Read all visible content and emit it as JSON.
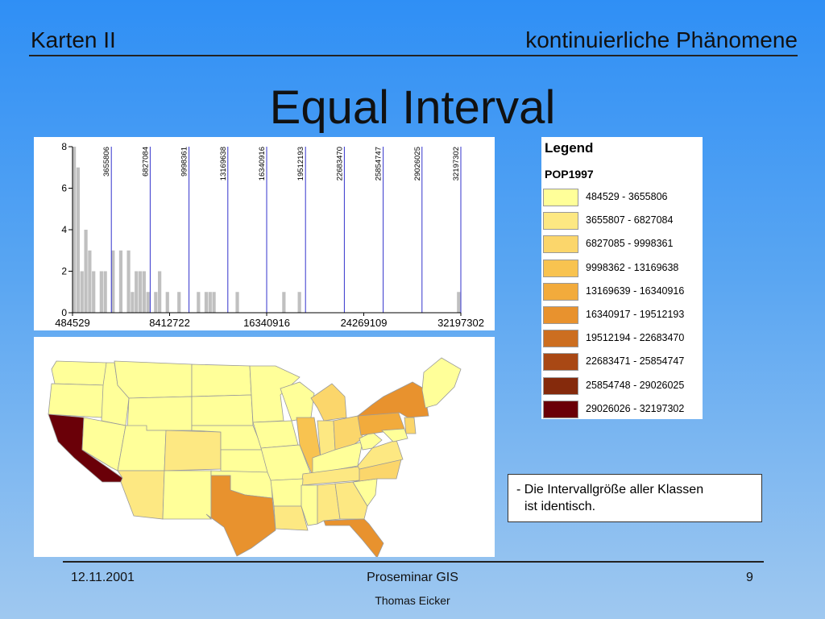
{
  "header": {
    "left": "Karten II",
    "right": "kontinuierliche Phänomene"
  },
  "title": "Equal Interval",
  "chart_data": {
    "type": "bar",
    "y_ticks": [
      "0",
      "2",
      "4",
      "6",
      "8"
    ],
    "ylim": [
      0,
      8
    ],
    "xlim": [
      484529,
      32197302
    ],
    "x_tick_labels": [
      "484529",
      "8412722",
      "16340916",
      "24269109",
      "32197302"
    ],
    "x_ticks": [
      484529,
      8412722,
      16340916,
      24269109,
      32197302
    ],
    "break_labels": [
      "3655806",
      "6827084",
      "9998361",
      "13169638",
      "16340916",
      "19512193",
      "22683470",
      "25854747",
      "29026025",
      "32197302"
    ],
    "breaks": [
      3655806,
      6827084,
      9998361,
      13169638,
      16340916,
      19512193,
      22683470,
      25854747,
      29026025,
      32197302
    ],
    "bar_width": 317000,
    "bars": [
      {
        "x": 484529,
        "v": 8
      },
      {
        "x": 801600,
        "v": 7
      },
      {
        "x": 1118700,
        "v": 2
      },
      {
        "x": 1435800,
        "v": 4
      },
      {
        "x": 1752900,
        "v": 3
      },
      {
        "x": 2070000,
        "v": 2
      },
      {
        "x": 2704100,
        "v": 2
      },
      {
        "x": 3021200,
        "v": 2
      },
      {
        "x": 3655300,
        "v": 3
      },
      {
        "x": 4289500,
        "v": 3
      },
      {
        "x": 4923600,
        "v": 3
      },
      {
        "x": 5240700,
        "v": 1
      },
      {
        "x": 5557800,
        "v": 2
      },
      {
        "x": 5874900,
        "v": 2
      },
      {
        "x": 6192000,
        "v": 2
      },
      {
        "x": 6509000,
        "v": 1
      },
      {
        "x": 7143200,
        "v": 1
      },
      {
        "x": 7460300,
        "v": 2
      },
      {
        "x": 8094400,
        "v": 1
      },
      {
        "x": 9045700,
        "v": 1
      },
      {
        "x": 10631400,
        "v": 1
      },
      {
        "x": 11265500,
        "v": 1
      },
      {
        "x": 11582600,
        "v": 1
      },
      {
        "x": 11899700,
        "v": 1
      },
      {
        "x": 13802400,
        "v": 1
      },
      {
        "x": 17607700,
        "v": 1
      },
      {
        "x": 18876000,
        "v": 1
      },
      {
        "x": 31880000,
        "v": 1
      }
    ]
  },
  "legend": {
    "title": "Legend",
    "field": "POP1997",
    "items": [
      {
        "label": "484529 - 3655806",
        "color": "#ffff99"
      },
      {
        "label": "3655807 - 6827084",
        "color": "#fde882"
      },
      {
        "label": "6827085 - 9998361",
        "color": "#fbd66b"
      },
      {
        "label": "9998362 - 13169638",
        "color": "#f8c350"
      },
      {
        "label": "13169639 - 16340916",
        "color": "#f2ab3c"
      },
      {
        "label": "16340917 - 19512193",
        "color": "#e8922e"
      },
      {
        "label": "19512194 - 22683470",
        "color": "#cc6e20"
      },
      {
        "label": "22683471 - 25854747",
        "color": "#a94814"
      },
      {
        "label": "25854748 - 29026025",
        "color": "#852a0c"
      },
      {
        "label": "29026026 - 32197302",
        "color": "#6a0008"
      }
    ]
  },
  "note": {
    "line1": "- Die Intervallgröße aller Klassen",
    "line2": "ist identisch."
  },
  "footer": {
    "date": "12.11.2001",
    "center": "Proseminar GIS",
    "author": "Thomas Eicker",
    "page": "9"
  }
}
